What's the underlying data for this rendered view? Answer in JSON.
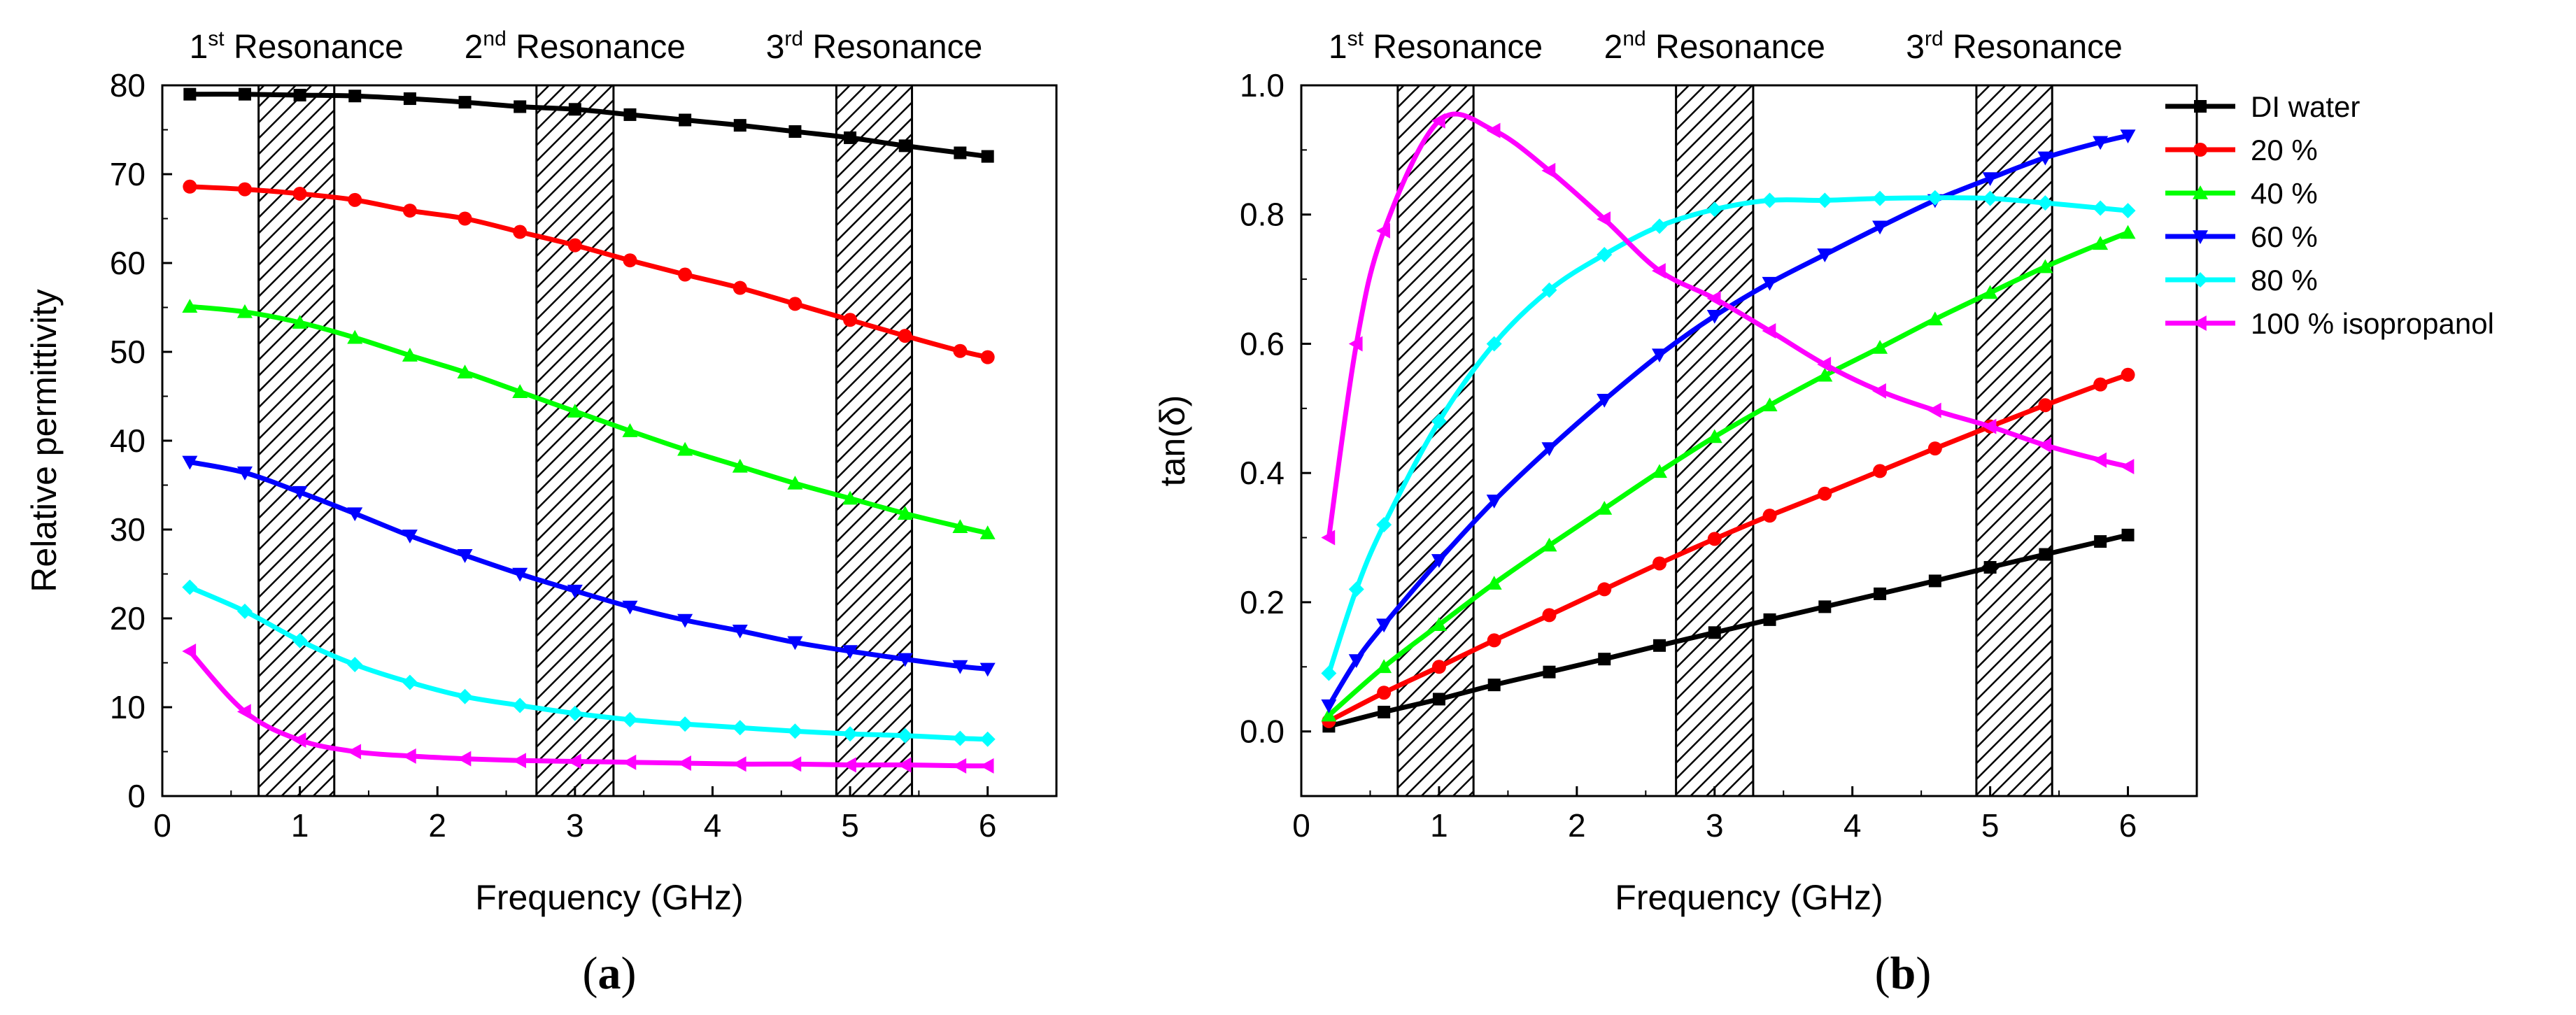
{
  "chart_data": [
    {
      "type": "line",
      "panel_label_open": "(",
      "panel_label_letter": "a",
      "panel_label_close": ")",
      "xlabel": "Frequency (GHz)",
      "ylabel": "Relative permittivity",
      "xlim": [
        0,
        6.5
      ],
      "ylim": [
        0,
        80
      ],
      "xticks": [
        0,
        1,
        2,
        3,
        4,
        5,
        6
      ],
      "yticks": [
        0,
        10,
        20,
        30,
        40,
        50,
        60,
        70,
        80
      ],
      "resonances": [
        {
          "num": "1",
          "sup": "st",
          "word": "Resonance",
          "range": [
            0.7,
            1.25
          ]
        },
        {
          "num": "2",
          "sup": "nd",
          "word": "Resonance",
          "range": [
            2.72,
            3.28
          ]
        },
        {
          "num": "3",
          "sup": "rd",
          "word": "Resonance",
          "range": [
            4.9,
            5.45
          ]
        }
      ],
      "series": [
        {
          "name": "DI water",
          "color": "#000000",
          "marker": "square",
          "x": [
            0.2,
            0.6,
            1.0,
            1.4,
            1.8,
            2.2,
            2.6,
            3.0,
            3.4,
            3.8,
            4.2,
            4.6,
            5.0,
            5.4,
            5.8,
            6.0
          ],
          "values": [
            79,
            79,
            78.9,
            78.8,
            78.5,
            78.1,
            77.6,
            77.3,
            76.7,
            76.1,
            75.5,
            74.8,
            74.1,
            73.2,
            72.4,
            72
          ]
        },
        {
          "name": "20 %",
          "color": "#ff0000",
          "marker": "circle",
          "x": [
            0.2,
            0.6,
            1.0,
            1.4,
            1.8,
            2.2,
            2.6,
            3.0,
            3.4,
            3.8,
            4.2,
            4.6,
            5.0,
            5.4,
            5.8,
            6.0
          ],
          "values": [
            68.6,
            68.3,
            67.8,
            67.1,
            65.9,
            65,
            63.5,
            62,
            60.3,
            58.7,
            57.2,
            55.4,
            53.6,
            51.8,
            50.1,
            49.4
          ]
        },
        {
          "name": "40 %",
          "color": "#00ff00",
          "marker": "triangle-up",
          "x": [
            0.2,
            0.6,
            1.0,
            1.4,
            1.8,
            2.2,
            2.6,
            3.0,
            3.4,
            3.8,
            4.2,
            4.6,
            5.0,
            5.4,
            5.8,
            6.0
          ],
          "values": [
            55.1,
            54.5,
            53.3,
            51.6,
            49.6,
            47.7,
            45.5,
            43.3,
            41.1,
            39,
            37.1,
            35.2,
            33.5,
            31.8,
            30.3,
            29.6
          ]
        },
        {
          "name": "60 %",
          "color": "#0000ff",
          "marker": "triangle-down",
          "x": [
            0.2,
            0.6,
            1.0,
            1.4,
            1.8,
            2.2,
            2.6,
            3.0,
            3.4,
            3.8,
            4.2,
            4.6,
            5.0,
            5.4,
            5.8,
            6.0
          ],
          "values": [
            37.6,
            36.4,
            34.2,
            31.8,
            29.3,
            27.1,
            25,
            23.1,
            21.3,
            19.8,
            18.6,
            17.3,
            16.3,
            15.4,
            14.6,
            14.3
          ]
        },
        {
          "name": "80 %",
          "color": "#00ffff",
          "marker": "diamond",
          "x": [
            0.2,
            0.6,
            1.0,
            1.4,
            1.8,
            2.2,
            2.6,
            3.0,
            3.4,
            3.8,
            4.2,
            4.6,
            5.0,
            5.4,
            5.8,
            6.0
          ],
          "values": [
            23.5,
            20.8,
            17.5,
            14.8,
            12.8,
            11.2,
            10.2,
            9.3,
            8.6,
            8.1,
            7.7,
            7.3,
            7,
            6.8,
            6.5,
            6.4
          ]
        },
        {
          "name": "100 % isopropanol",
          "color": "#ff00ff",
          "marker": "triangle-left",
          "x": [
            0.2,
            0.6,
            1.0,
            1.4,
            1.8,
            2.2,
            2.6,
            3.0,
            3.4,
            3.8,
            4.2,
            4.6,
            5.0,
            5.4,
            5.8,
            6.0
          ],
          "values": [
            16.3,
            9.5,
            6.3,
            5,
            4.5,
            4.2,
            4,
            3.9,
            3.8,
            3.7,
            3.6,
            3.6,
            3.5,
            3.5,
            3.4,
            3.4
          ]
        }
      ]
    },
    {
      "type": "line",
      "panel_label_open": "(",
      "panel_label_letter": "b",
      "panel_label_close": ")",
      "xlabel": "Frequency (GHz)",
      "ylabel": "tan(δ)",
      "xlim": [
        0,
        6.5
      ],
      "ylim": [
        -0.1,
        1.0
      ],
      "xticks": [
        0,
        1,
        2,
        3,
        4,
        5,
        6
      ],
      "yticks": [
        0.0,
        0.2,
        0.4,
        0.6,
        0.8,
        1.0
      ],
      "ytick_labels": [
        "0.0",
        "0.2",
        "0.4",
        "0.6",
        "0.8",
        "1.0"
      ],
      "legend_position": "top-right",
      "resonances": [
        {
          "num": "1",
          "sup": "st",
          "word": "Resonance",
          "range": [
            0.7,
            1.25
          ]
        },
        {
          "num": "2",
          "sup": "nd",
          "word": "Resonance",
          "range": [
            2.72,
            3.28
          ]
        },
        {
          "num": "3",
          "sup": "rd",
          "word": "Resonance",
          "range": [
            4.9,
            5.45
          ]
        }
      ],
      "series": [
        {
          "name": "DI water",
          "color": "#000000",
          "marker": "square",
          "x": [
            0.2,
            0.6,
            1.0,
            1.4,
            1.8,
            2.2,
            2.6,
            3.0,
            3.4,
            3.8,
            4.2,
            4.6,
            5.0,
            5.4,
            5.8,
            6.0
          ],
          "values": [
            0.008,
            0.03,
            0.05,
            0.072,
            0.092,
            0.112,
            0.133,
            0.153,
            0.173,
            0.193,
            0.213,
            0.233,
            0.254,
            0.274,
            0.294,
            0.304
          ]
        },
        {
          "name": "20 %",
          "color": "#ff0000",
          "marker": "circle",
          "x": [
            0.2,
            0.6,
            1.0,
            1.4,
            1.8,
            2.2,
            2.6,
            3.0,
            3.4,
            3.8,
            4.2,
            4.6,
            5.0,
            5.4,
            5.8,
            6.0
          ],
          "values": [
            0.016,
            0.06,
            0.1,
            0.141,
            0.18,
            0.22,
            0.26,
            0.298,
            0.334,
            0.368,
            0.403,
            0.438,
            0.472,
            0.505,
            0.537,
            0.552
          ]
        },
        {
          "name": "40 %",
          "color": "#00ff00",
          "marker": "triangle-up",
          "x": [
            0.2,
            0.6,
            1.0,
            1.4,
            1.8,
            2.2,
            2.6,
            3.0,
            3.4,
            3.8,
            4.2,
            4.6,
            5.0,
            5.4,
            5.8,
            6.0
          ],
          "values": [
            0.025,
            0.1,
            0.165,
            0.229,
            0.288,
            0.345,
            0.402,
            0.456,
            0.505,
            0.551,
            0.594,
            0.638,
            0.679,
            0.719,
            0.755,
            0.772
          ]
        },
        {
          "name": "60 %",
          "color": "#0000ff",
          "marker": "triangle-down",
          "x": [
            0.2,
            0.4,
            0.6,
            1.0,
            1.4,
            1.8,
            2.2,
            2.6,
            3.0,
            3.4,
            3.8,
            4.2,
            4.6,
            5.0,
            5.4,
            5.8,
            6.0
          ],
          "values": [
            0.04,
            0.11,
            0.165,
            0.265,
            0.357,
            0.438,
            0.513,
            0.583,
            0.643,
            0.694,
            0.738,
            0.781,
            0.822,
            0.856,
            0.888,
            0.912,
            0.922
          ]
        },
        {
          "name": "80 %",
          "color": "#00ffff",
          "marker": "diamond",
          "x": [
            0.2,
            0.4,
            0.6,
            1.0,
            1.4,
            1.8,
            2.2,
            2.6,
            3.0,
            3.4,
            3.8,
            4.2,
            4.6,
            5.0,
            5.4,
            5.8,
            6.0
          ],
          "values": [
            0.09,
            0.22,
            0.32,
            0.48,
            0.6,
            0.683,
            0.738,
            0.782,
            0.808,
            0.822,
            0.822,
            0.825,
            0.826,
            0.825,
            0.818,
            0.81,
            0.806
          ]
        },
        {
          "name": "100 % isopropanol",
          "color": "#ff00ff",
          "marker": "triangle-left",
          "x": [
            0.2,
            0.4,
            0.6,
            1.0,
            1.4,
            1.8,
            2.2,
            2.6,
            3.0,
            3.4,
            3.8,
            4.2,
            4.6,
            5.0,
            5.4,
            5.8,
            6.0
          ],
          "values": [
            0.3,
            0.6,
            0.775,
            0.945,
            0.93,
            0.868,
            0.793,
            0.713,
            0.67,
            0.62,
            0.568,
            0.527,
            0.497,
            0.472,
            0.443,
            0.42,
            0.41
          ]
        }
      ]
    }
  ]
}
